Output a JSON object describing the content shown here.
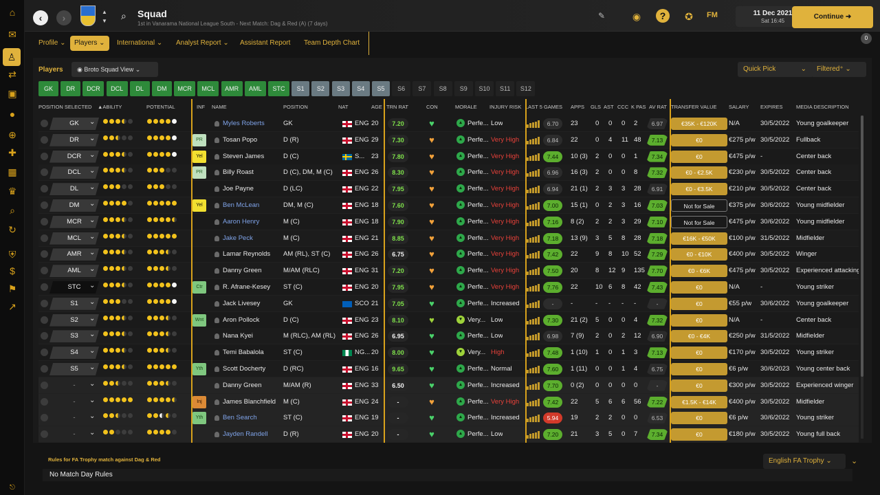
{
  "header": {
    "title": "Squad",
    "subtitle": "1st in Vanarama National League South - Next Match: Dag & Red (A) (7 days)",
    "fm_label": "FM",
    "date": "11 Dec 2021",
    "time": "Sat 16:45",
    "continue_label": "Continue",
    "notification_count": "0"
  },
  "sidebar": {
    "icons": [
      "home-icon",
      "inbox-icon",
      "squad-icon",
      "transfers-icon",
      "tactics-icon",
      "training-icon",
      "scouting-icon",
      "medical-icon",
      "schedule-icon",
      "competitions-icon",
      "search-icon",
      "refresh-icon",
      "club-icon",
      "finance-icon",
      "dev-centre-icon",
      "trends-icon"
    ],
    "active": "squad-icon"
  },
  "tabs": [
    "Profile",
    "Players",
    "International",
    "Analyst Report",
    "Assistant Report",
    "Team Depth Chart"
  ],
  "tab_dropdowns": [
    true,
    true,
    true,
    true,
    false,
    false
  ],
  "active_tab": "Players",
  "toolbar": {
    "players_label": "Players",
    "view_label": "Broto Squad View",
    "quick_pick": "Quick Pick",
    "filter": "Filtered"
  },
  "chips": [
    "GK",
    "DR",
    "DCR",
    "DCL",
    "DL",
    "DM",
    "MCR",
    "MCL",
    "AMR",
    "AML",
    "STC",
    "S1",
    "S2",
    "S3",
    "S4",
    "S5",
    "S6",
    "S7",
    "S8",
    "S9",
    "S10",
    "S11",
    "S12"
  ],
  "columns": [
    "POSITION SELECTED",
    "▲ABILITY",
    "POTENTIAL",
    "INF",
    "NAME",
    "POSITION",
    "NAT",
    "AGE",
    "TRN RAT",
    "CON",
    "MORALE",
    "INJURY RISK",
    "LAST 5 GAMES",
    "APPS",
    "GLS",
    "AST",
    "CCC",
    "K PAS",
    "AV RAT",
    "TRANSFER VALUE",
    "SALARY",
    "EXPIRES",
    "MEDIA DESCRIPTION"
  ],
  "players": [
    {
      "sel": "GK",
      "ab": [
        1,
        1,
        1,
        0.5,
        0
      ],
      "pot": [
        1,
        1,
        1,
        1,
        "w"
      ],
      "inf": "",
      "name": "Myles Roberts",
      "link": true,
      "pos": "GK",
      "nat": "ENG",
      "age": "20",
      "trn": "7.20",
      "trnc": "g",
      "con": "#4ad16a",
      "morale": "Perfe...",
      "mv": false,
      "risk": "Low",
      "l5": "6.70",
      "l5c": "n",
      "apps": "23",
      "gls": "0",
      "ast": "0",
      "ccc": "0",
      "kpas": "2",
      "avr": "6.97",
      "avrc": "n",
      "tv": "€35K - €120K",
      "tvo": false,
      "sal": "N/A",
      "exp": "30/5/2022",
      "desc": "Young goalkeeper"
    },
    {
      "sel": "DR",
      "ab": [
        1,
        1,
        0.5,
        0,
        0
      ],
      "pot": [
        1,
        1,
        1,
        1,
        "w"
      ],
      "inf": "PR",
      "name": "Tosan Popo",
      "link": false,
      "pos": "D (R)",
      "nat": "ENG",
      "age": "29",
      "trn": "7.30",
      "trnc": "g",
      "con": "#f2a13a",
      "morale": "Perfe...",
      "mv": false,
      "risk": "Very High",
      "l5": "6.84",
      "l5c": "n",
      "apps": "22",
      "gls": "0",
      "ast": "4",
      "ccc": "11",
      "kpas": "48",
      "avr": "7.13",
      "avrc": "g",
      "tv": "€0",
      "tvo": false,
      "sal": "€275 p/w",
      "exp": "30/5/2022",
      "desc": "Fullback"
    },
    {
      "sel": "DCR",
      "ab": [
        1,
        1,
        1,
        0.5,
        0
      ],
      "pot": [
        1,
        1,
        1,
        1,
        "w"
      ],
      "inf": "Yel",
      "name": "Steven James",
      "link": false,
      "pos": "D (C)",
      "nat": "SWE",
      "natlabel": "S...",
      "age": "23",
      "trn": "7.80",
      "trnc": "g",
      "con": "#f2a13a",
      "morale": "Perfe...",
      "mv": false,
      "risk": "Very High",
      "l5": "7.44",
      "l5c": "g",
      "apps": "10 (3)",
      "gls": "2",
      "ast": "0",
      "ccc": "0",
      "kpas": "1",
      "avr": "7.34",
      "avrc": "g",
      "tv": "€0",
      "tvo": false,
      "sal": "€475 p/w",
      "exp": "-",
      "desc": "Center back"
    },
    {
      "sel": "DCL",
      "ab": [
        1,
        1,
        1,
        0.5,
        0
      ],
      "pot": [
        1,
        1,
        1,
        0,
        0
      ],
      "inf": "PR",
      "name": "Billy Roast",
      "link": false,
      "pos": "D (C), DM, M (C)",
      "nat": "ENG",
      "age": "26",
      "trn": "8.30",
      "trnc": "g",
      "con": "#f2a13a",
      "morale": "Perfe...",
      "mv": false,
      "risk": "Very High",
      "l5": "6.96",
      "l5c": "n",
      "apps": "16 (3)",
      "gls": "2",
      "ast": "0",
      "ccc": "0",
      "kpas": "8",
      "avr": "7.32",
      "avrc": "g",
      "tv": "€0 - €2.5K",
      "tvo": false,
      "sal": "€230 p/w",
      "exp": "30/5/2022",
      "desc": "Center back"
    },
    {
      "sel": "DL",
      "ab": [
        1,
        1,
        1,
        0,
        0
      ],
      "pot": [
        1,
        1,
        1,
        0,
        0
      ],
      "inf": "",
      "name": "Joe Payne",
      "link": false,
      "pos": "D (LC)",
      "nat": "ENG",
      "age": "22",
      "trn": "7.95",
      "trnc": "g",
      "con": "#f2a13a",
      "morale": "Perfe...",
      "mv": false,
      "risk": "Very High",
      "l5": "6.94",
      "l5c": "n",
      "apps": "21 (1)",
      "gls": "2",
      "ast": "3",
      "ccc": "3",
      "kpas": "28",
      "avr": "6.91",
      "avrc": "n",
      "tv": "€0 - €3.5K",
      "tvo": false,
      "sal": "€210 p/w",
      "exp": "30/5/2022",
      "desc": "Center back"
    },
    {
      "sel": "DM",
      "ab": [
        1,
        1,
        1,
        1,
        0
      ],
      "pot": [
        1,
        1,
        1,
        1,
        1
      ],
      "inf": "Yel",
      "name": "Ben McLean",
      "link": true,
      "pos": "DM, M (C)",
      "nat": "ENG",
      "age": "18",
      "trn": "7.60",
      "trnc": "g",
      "con": "#f2a13a",
      "morale": "Perfe...",
      "mv": false,
      "risk": "Very High",
      "l5": "7.00",
      "l5c": "g",
      "apps": "15 (1)",
      "gls": "0",
      "ast": "2",
      "ccc": "3",
      "kpas": "16",
      "avr": "7.03",
      "avrc": "g",
      "tv": "Not for Sale",
      "tvo": true,
      "sal": "€375 p/w",
      "exp": "30/6/2022",
      "desc": "Young midfielder"
    },
    {
      "sel": "MCR",
      "ab": [
        1,
        1,
        1,
        0.5,
        0
      ],
      "pot": [
        1,
        1,
        1,
        1,
        0.5
      ],
      "inf": "",
      "name": "Aaron Henry",
      "link": true,
      "pos": "M (C)",
      "nat": "ENG",
      "age": "18",
      "trn": "7.90",
      "trnc": "g",
      "con": "#f2a13a",
      "morale": "Perfe...",
      "mv": false,
      "risk": "Very High",
      "l5": "7.16",
      "l5c": "g",
      "apps": "8 (2)",
      "gls": "2",
      "ast": "2",
      "ccc": "3",
      "kpas": "29",
      "avr": "7.10",
      "avrc": "g",
      "tv": "Not for Sale",
      "tvo": true,
      "sal": "€475 p/w",
      "exp": "30/6/2022",
      "desc": "Young midfielder"
    },
    {
      "sel": "MCL",
      "ab": [
        1,
        1,
        1,
        0.5,
        0
      ],
      "pot": [
        1,
        1,
        1,
        1,
        1
      ],
      "inf": "",
      "name": "Jake Peck",
      "link": true,
      "pos": "M (C)",
      "nat": "ENG",
      "age": "21",
      "trn": "8.85",
      "trnc": "g",
      "con": "#f2a13a",
      "morale": "Perfe...",
      "mv": false,
      "risk": "Very High",
      "l5": "7.18",
      "l5c": "g",
      "apps": "13 (9)",
      "gls": "3",
      "ast": "5",
      "ccc": "8",
      "kpas": "28",
      "avr": "7.18",
      "avrc": "g",
      "tv": "€16K - €50K",
      "tvo": false,
      "sal": "€100 p/w",
      "exp": "31/5/2022",
      "desc": "Midfielder"
    },
    {
      "sel": "AMR",
      "ab": [
        1,
        1,
        1,
        0.5,
        0
      ],
      "pot": [
        1,
        1,
        1,
        0.5,
        0
      ],
      "inf": "",
      "name": "Lamar Reynolds",
      "link": false,
      "pos": "AM (RL), ST (C)",
      "nat": "ENG",
      "age": "26",
      "trn": "6.75",
      "trnc": "w",
      "con": "#f2a13a",
      "morale": "Perfe...",
      "mv": false,
      "risk": "Very High",
      "l5": "7.42",
      "l5c": "g",
      "apps": "22",
      "gls": "9",
      "ast": "8",
      "ccc": "10",
      "kpas": "52",
      "avr": "7.29",
      "avrc": "g",
      "tv": "€0 - €10K",
      "tvo": false,
      "sal": "€400 p/w",
      "exp": "30/5/2022",
      "desc": "Winger"
    },
    {
      "sel": "AML",
      "ab": [
        1,
        1,
        1,
        0.5,
        0
      ],
      "pot": [
        1,
        1,
        1,
        0.5,
        0
      ],
      "inf": "",
      "name": "Danny Green",
      "link": false,
      "pos": "M/AM (RLC)",
      "nat": "ENG",
      "age": "31",
      "trn": "7.20",
      "trnc": "g",
      "con": "#f2a13a",
      "morale": "Perfe...",
      "mv": false,
      "risk": "Very High",
      "l5": "7.50",
      "l5c": "g",
      "apps": "20",
      "gls": "8",
      "ast": "12",
      "ccc": "9",
      "kpas": "135",
      "avr": "7.70",
      "avrc": "g",
      "tv": "€0 - €6K",
      "tvo": false,
      "sal": "€475 p/w",
      "exp": "30/5/2022",
      "desc": "Experienced attacking midfielder"
    },
    {
      "sel": "STC",
      "ab": [
        1,
        1,
        1,
        0.5,
        0
      ],
      "pot": [
        1,
        1,
        1,
        1,
        "w"
      ],
      "inf": "Ctr",
      "name": "R. Afrane-Kesey",
      "link": false,
      "pos": "ST (C)",
      "nat": "ENG",
      "age": "20",
      "trn": "7.95",
      "trnc": "g",
      "con": "#f2a13a",
      "morale": "Perfe...",
      "mv": false,
      "risk": "Very High",
      "l5": "7.76",
      "l5c": "g",
      "apps": "22",
      "gls": "10",
      "ast": "6",
      "ccc": "8",
      "kpas": "42",
      "avr": "7.43",
      "avrc": "g",
      "tv": "€0",
      "tvo": false,
      "sal": "N/A",
      "exp": "-",
      "desc": "Young striker"
    },
    {
      "sel": "S1",
      "ab": [
        1,
        1,
        1,
        0,
        0
      ],
      "pot": [
        1,
        1,
        1,
        1,
        "w"
      ],
      "inf": "",
      "name": "Jack Livesey",
      "link": false,
      "pos": "GK",
      "nat": "SCO",
      "age": "21",
      "trn": "7.05",
      "trnc": "g",
      "con": "#4ad16a",
      "morale": "Perfe...",
      "mv": false,
      "risk": "Increased",
      "l5": "-",
      "l5c": "n",
      "apps": "-",
      "gls": "-",
      "ast": "-",
      "ccc": "-",
      "kpas": "-",
      "avr": "-",
      "avrc": "n",
      "tv": "€0",
      "tvo": false,
      "sal": "€55 p/w",
      "exp": "30/6/2022",
      "desc": "Young goalkeeper"
    },
    {
      "sel": "S2",
      "ab": [
        1,
        1,
        1,
        0.5,
        0
      ],
      "pot": [
        1,
        1,
        1,
        0.5,
        0
      ],
      "inf": "Wnt",
      "name": "Aron Pollock",
      "link": false,
      "pos": "D (C)",
      "nat": "ENG",
      "age": "23",
      "trn": "8.10",
      "trnc": "g",
      "con": "#9ed23a",
      "morale": "Very...",
      "mv": true,
      "risk": "Low",
      "l5": "7.30",
      "l5c": "g",
      "apps": "21 (2)",
      "gls": "5",
      "ast": "0",
      "ccc": "0",
      "kpas": "4",
      "avr": "7.32",
      "avrc": "g",
      "tv": "€0",
      "tvo": false,
      "sal": "N/A",
      "exp": "-",
      "desc": "Center back"
    },
    {
      "sel": "S3",
      "ab": [
        1,
        1,
        1,
        0.5,
        0
      ],
      "pot": [
        1,
        1,
        1,
        0.5,
        0
      ],
      "inf": "",
      "name": "Nana Kyei",
      "link": false,
      "pos": "M (RLC), AM (RL)",
      "nat": "ENG",
      "age": "26",
      "trn": "6.95",
      "trnc": "w",
      "con": "#4ad16a",
      "morale": "Perfe...",
      "mv": false,
      "risk": "Low",
      "l5": "6.98",
      "l5c": "n",
      "apps": "7 (9)",
      "gls": "2",
      "ast": "0",
      "ccc": "2",
      "kpas": "12",
      "avr": "6.90",
      "avrc": "n",
      "tv": "€0 - €4K",
      "tvo": false,
      "sal": "€250 p/w",
      "exp": "31/5/2022",
      "desc": "Midfielder"
    },
    {
      "sel": "S4",
      "ab": [
        1,
        1,
        1,
        0.5,
        0
      ],
      "pot": [
        1,
        1,
        1,
        0.5,
        0
      ],
      "inf": "",
      "name": "Temi Babalola",
      "link": false,
      "pos": "ST (C)",
      "nat": "NGA",
      "natlabel": "NG...",
      "age": "20",
      "trn": "8.00",
      "trnc": "g",
      "con": "#4ad16a",
      "morale": "Very...",
      "mv": true,
      "risk": "High",
      "l5": "7.48",
      "l5c": "g",
      "apps": "1 (10)",
      "gls": "1",
      "ast": "0",
      "ccc": "1",
      "kpas": "3",
      "avr": "7.13",
      "avrc": "g",
      "tv": "€0",
      "tvo": false,
      "sal": "€170 p/w",
      "exp": "30/5/2022",
      "desc": "Young striker"
    },
    {
      "sel": "S5",
      "ab": [
        1,
        1,
        1,
        0.5,
        0
      ],
      "pot": [
        1,
        1,
        1,
        1,
        1
      ],
      "inf": "Yth",
      "name": "Scott Docherty",
      "link": false,
      "pos": "D (RC)",
      "nat": "ENG",
      "age": "16",
      "trn": "9.65",
      "trnc": "g",
      "con": "#4ad16a",
      "morale": "Perfe...",
      "mv": false,
      "risk": "Normal",
      "l5": "7.60",
      "l5c": "g",
      "apps": "1 (11)",
      "gls": "0",
      "ast": "0",
      "ccc": "1",
      "kpas": "4",
      "avr": "6.75",
      "avrc": "n",
      "tv": "€0",
      "tvo": false,
      "sal": "€6 p/w",
      "exp": "30/6/2023",
      "desc": "Young center back"
    },
    {
      "sel": "-",
      "ab": [
        1,
        1,
        0.5,
        0,
        0
      ],
      "pot": [
        1,
        1,
        1,
        0.5,
        0
      ],
      "inf": "",
      "name": "Danny Green",
      "link": false,
      "pos": "M/AM (R)",
      "nat": "ENG",
      "age": "33",
      "trn": "6.50",
      "trnc": "w",
      "con": "#4ad16a",
      "morale": "Perfe...",
      "mv": false,
      "risk": "Increased",
      "l5": "7.70",
      "l5c": "g",
      "apps": "0 (2)",
      "gls": "0",
      "ast": "0",
      "ccc": "0",
      "kpas": "0",
      "avr": "-",
      "avrc": "n",
      "tv": "€0",
      "tvo": false,
      "sal": "€300 p/w",
      "exp": "30/5/2022",
      "desc": "Experienced winger"
    },
    {
      "sel": "-",
      "ab": [
        1,
        1,
        1,
        1,
        1
      ],
      "pot": [
        1,
        1,
        1,
        1,
        0.5
      ],
      "inf": "Inj",
      "name": "James Blanchfield",
      "link": false,
      "pos": "M (C)",
      "nat": "ENG",
      "age": "24",
      "trn": "-",
      "trnc": "w",
      "con": "#f2a13a",
      "morale": "Perfe...",
      "mv": false,
      "risk": "Very High",
      "l5": "7.42",
      "l5c": "g",
      "apps": "22",
      "gls": "5",
      "ast": "6",
      "ccc": "6",
      "kpas": "56",
      "avr": "7.22",
      "avrc": "g",
      "tv": "€1.5K - €14K",
      "tvo": false,
      "sal": "€400 p/w",
      "exp": "30/5/2022",
      "desc": "Midfielder"
    },
    {
      "sel": "-",
      "ab": [
        1,
        1,
        0.5,
        0,
        0
      ],
      "pot": [
        1,
        1,
        "wh",
        0.5,
        0
      ],
      "inf": "Yth",
      "name": "Ben Search",
      "link": true,
      "pos": "ST (C)",
      "nat": "ENG",
      "age": "19",
      "trn": "-",
      "trnc": "w",
      "con": "#4ad16a",
      "morale": "Perfe...",
      "mv": false,
      "risk": "Increased",
      "l5": "5.94",
      "l5c": "r",
      "apps": "19",
      "gls": "2",
      "ast": "2",
      "ccc": "0",
      "kpas": "0",
      "avr": "6.53",
      "avrc": "n",
      "tv": "€0",
      "tvo": false,
      "sal": "€6 p/w",
      "exp": "30/6/2022",
      "desc": "Young striker"
    },
    {
      "sel": "-",
      "ab": [
        1,
        1,
        0,
        0,
        0
      ],
      "pot": [
        1,
        1,
        1,
        1,
        0
      ],
      "inf": "",
      "name": "Jayden Randell",
      "link": true,
      "pos": "D (R)",
      "nat": "ENG",
      "age": "20",
      "trn": "-",
      "trnc": "w",
      "con": "#4ad16a",
      "morale": "Perfe...",
      "mv": false,
      "risk": "Low",
      "l5": "7.20",
      "l5c": "g",
      "apps": "21",
      "gls": "3",
      "ast": "5",
      "ccc": "0",
      "kpas": "7",
      "avr": "7.34",
      "avrc": "g",
      "tv": "€0",
      "tvo": false,
      "sal": "€180 p/w",
      "exp": "30/5/2022",
      "desc": "Young full back"
    }
  ],
  "rules": {
    "title": "Rules for FA Trophy match against Dag & Red",
    "text": "No Match Day Rules",
    "competition": "English FA Trophy"
  },
  "colors": {
    "accent": "#e0b23c",
    "green": "#2e8a3a",
    "bg": "#141414"
  }
}
